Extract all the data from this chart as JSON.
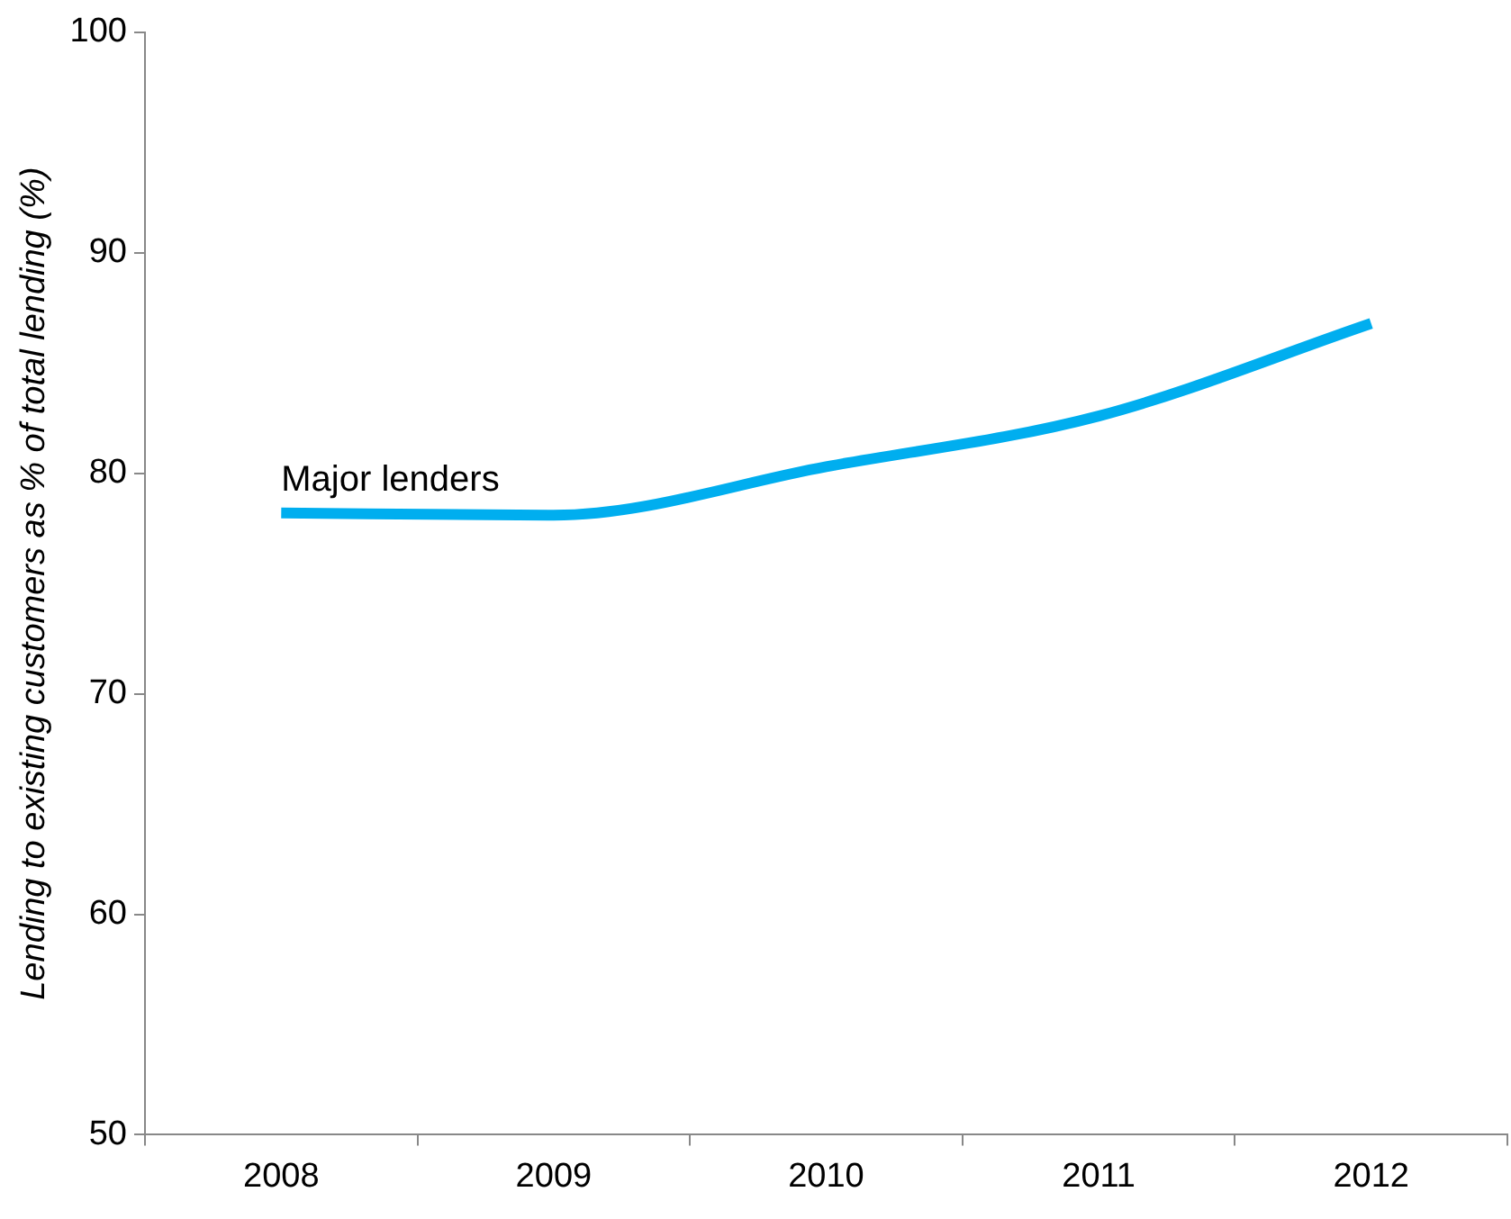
{
  "chart_data": {
    "type": "line",
    "ylabel": "Lending to existing customers as % of total lending (%)",
    "categories": [
      "2008",
      "2009",
      "2010",
      "2011",
      "2012"
    ],
    "series": [
      {
        "name": "Major lenders",
        "color": "#00aeef",
        "values": [
          78.2,
          78.1,
          80.3,
          82.6,
          86.8
        ]
      }
    ],
    "ylim": [
      50,
      100
    ],
    "yticks": [
      50,
      60,
      70,
      80,
      90,
      100
    ],
    "grid": false,
    "legend": false,
    "marker": "none",
    "line_style": "solid"
  }
}
